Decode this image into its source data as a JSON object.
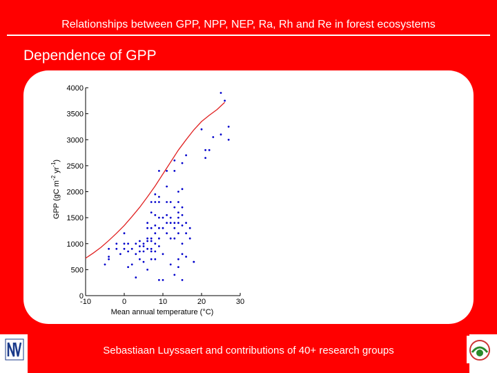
{
  "header": {
    "title": "Relationships between GPP, NPP, NEP, Ra, Rh and Re in forest ecosystems"
  },
  "subtitle": "Dependence of GPP",
  "footer": {
    "credit": "Sebastiaan Luyssaert and contributions of 40+ research groups"
  },
  "logos": {
    "left": "university-logo",
    "right": "carbo-europe-logo"
  },
  "colors": {
    "background": "#ff0000",
    "points": "#0000cc",
    "curve": "#e02020"
  },
  "chart_data": {
    "type": "scatter",
    "title": "",
    "xlabel": "Mean annual temperature (°C)",
    "ylabel": "GPP (gC m-2 yr-1)",
    "ylabel_base": "GPP (gC m",
    "ylabel_exp1": "-2",
    "ylabel_mid": " yr",
    "ylabel_exp2": "-1",
    "ylabel_end": ")",
    "xlim": [
      -10,
      30
    ],
    "ylim": [
      0,
      4000
    ],
    "xticks": [
      "-10",
      "0",
      "10",
      "20",
      "30"
    ],
    "yticks": [
      "0",
      "500",
      "1000",
      "1500",
      "2000",
      "2500",
      "3000",
      "3500",
      "4000"
    ],
    "grid": false,
    "points": [
      [
        -5,
        600
      ],
      [
        -4,
        900
      ],
      [
        -4,
        750
      ],
      [
        -4,
        700
      ],
      [
        -2,
        1000
      ],
      [
        -2,
        900
      ],
      [
        -1,
        800
      ],
      [
        0,
        1200
      ],
      [
        0,
        1000
      ],
      [
        0,
        900
      ],
      [
        1,
        1000
      ],
      [
        1,
        550
      ],
      [
        1,
        850
      ],
      [
        2,
        900
      ],
      [
        2,
        600
      ],
      [
        3,
        1000
      ],
      [
        3,
        350
      ],
      [
        3,
        800
      ],
      [
        4,
        1050
      ],
      [
        4,
        950
      ],
      [
        4,
        850
      ],
      [
        4,
        700
      ],
      [
        5,
        1000
      ],
      [
        5,
        950
      ],
      [
        5,
        850
      ],
      [
        5,
        650
      ],
      [
        6,
        1400
      ],
      [
        6,
        1300
      ],
      [
        6,
        1100
      ],
      [
        6,
        1050
      ],
      [
        6,
        900
      ],
      [
        6,
        500
      ],
      [
        7,
        1800
      ],
      [
        7,
        1600
      ],
      [
        7,
        1300
      ],
      [
        7,
        1100
      ],
      [
        7,
        1050
      ],
      [
        7,
        900
      ],
      [
        7,
        850
      ],
      [
        7,
        700
      ],
      [
        8,
        1950
      ],
      [
        8,
        1800
      ],
      [
        8,
        1550
      ],
      [
        8,
        1350
      ],
      [
        8,
        1200
      ],
      [
        8,
        1000
      ],
      [
        8,
        850
      ],
      [
        8,
        700
      ],
      [
        9,
        2400
      ],
      [
        9,
        1900
      ],
      [
        9,
        1800
      ],
      [
        9,
        1500
      ],
      [
        9,
        1300
      ],
      [
        9,
        1100
      ],
      [
        9,
        950
      ],
      [
        9,
        300
      ],
      [
        10,
        1500
      ],
      [
        10,
        1300
      ],
      [
        10,
        800
      ],
      [
        10,
        300
      ],
      [
        11,
        2400
      ],
      [
        11,
        2100
      ],
      [
        11,
        1800
      ],
      [
        11,
        1550
      ],
      [
        11,
        1400
      ],
      [
        11,
        1200
      ],
      [
        12,
        1800
      ],
      [
        12,
        1500
      ],
      [
        12,
        1400
      ],
      [
        12,
        1100
      ],
      [
        12,
        600
      ],
      [
        13,
        2600
      ],
      [
        13,
        2400
      ],
      [
        13,
        1700
      ],
      [
        13,
        1400
      ],
      [
        13,
        1300
      ],
      [
        13,
        1100
      ],
      [
        13,
        400
      ],
      [
        14,
        2000
      ],
      [
        14,
        1800
      ],
      [
        14,
        1600
      ],
      [
        14,
        1500
      ],
      [
        14,
        1400
      ],
      [
        14,
        1200
      ],
      [
        14,
        700
      ],
      [
        14,
        550
      ],
      [
        15,
        2550
      ],
      [
        15,
        2050
      ],
      [
        15,
        1700
      ],
      [
        15,
        1550
      ],
      [
        15,
        1350
      ],
      [
        15,
        1000
      ],
      [
        15,
        800
      ],
      [
        15,
        300
      ],
      [
        16,
        2700
      ],
      [
        16,
        1400
      ],
      [
        16,
        1200
      ],
      [
        16,
        750
      ],
      [
        17,
        1300
      ],
      [
        17,
        1100
      ],
      [
        18,
        650
      ],
      [
        18,
        650
      ],
      [
        20,
        3200
      ],
      [
        21,
        2800
      ],
      [
        21,
        2650
      ],
      [
        22,
        2800
      ],
      [
        23,
        3050
      ],
      [
        25,
        3900
      ],
      [
        25,
        3100
      ],
      [
        26,
        3750
      ],
      [
        27,
        3250
      ],
      [
        27,
        3000
      ]
    ],
    "curve": [
      [
        -10,
        720
      ],
      [
        -8,
        820
      ],
      [
        -6,
        930
      ],
      [
        -4,
        1060
      ],
      [
        -2,
        1200
      ],
      [
        0,
        1350
      ],
      [
        2,
        1520
      ],
      [
        4,
        1700
      ],
      [
        6,
        1900
      ],
      [
        8,
        2110
      ],
      [
        10,
        2340
      ],
      [
        12,
        2570
      ],
      [
        14,
        2800
      ],
      [
        16,
        3000
      ],
      [
        18,
        3190
      ],
      [
        20,
        3350
      ],
      [
        22,
        3470
      ],
      [
        24,
        3580
      ],
      [
        26,
        3720
      ]
    ]
  }
}
